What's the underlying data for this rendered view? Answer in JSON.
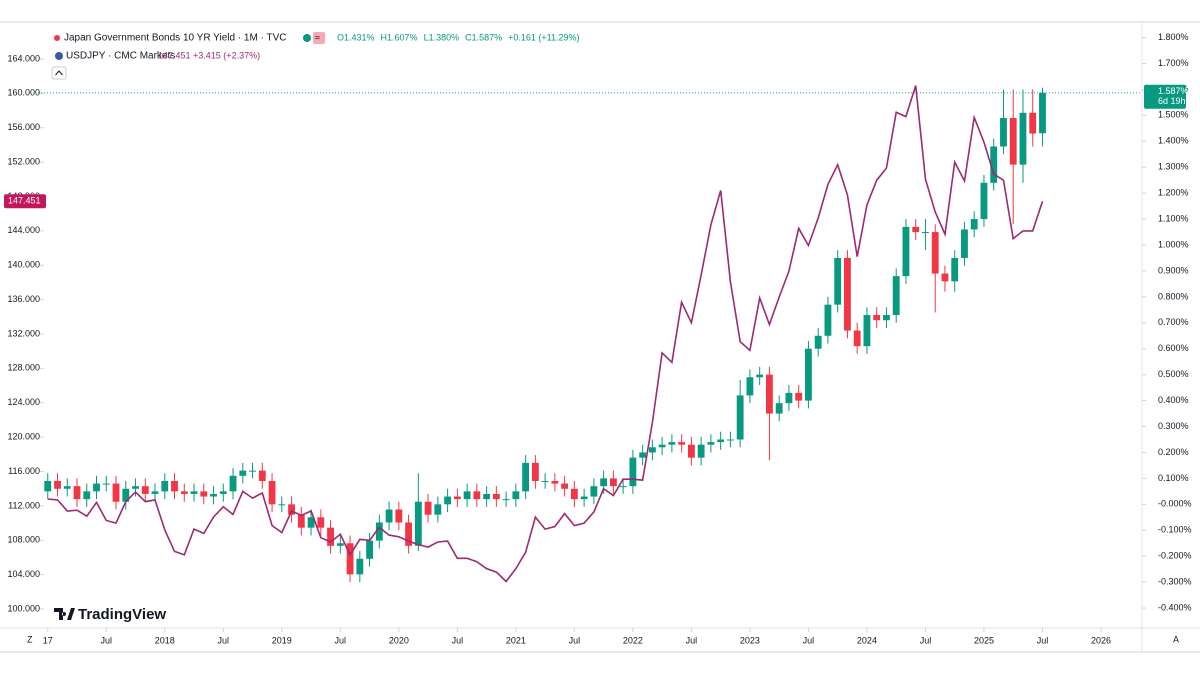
{
  "chart_data": {
    "type": "candlestick",
    "x": [
      "2017-01",
      "2017-02",
      "2017-03",
      "2017-04",
      "2017-05",
      "2017-06",
      "2017-07",
      "2017-08",
      "2017-09",
      "2017-10",
      "2017-11",
      "2017-12",
      "2018-01",
      "2018-02",
      "2018-03",
      "2018-04",
      "2018-05",
      "2018-06",
      "2018-07",
      "2018-08",
      "2018-09",
      "2018-10",
      "2018-11",
      "2018-12",
      "2019-01",
      "2019-02",
      "2019-03",
      "2019-04",
      "2019-05",
      "2019-06",
      "2019-07",
      "2019-08",
      "2019-09",
      "2019-10",
      "2019-11",
      "2019-12",
      "2020-01",
      "2020-02",
      "2020-03",
      "2020-04",
      "2020-05",
      "2020-06",
      "2020-07",
      "2020-08",
      "2020-09",
      "2020-10",
      "2020-11",
      "2020-12",
      "2021-01",
      "2021-02",
      "2021-03",
      "2021-04",
      "2021-05",
      "2021-06",
      "2021-07",
      "2021-08",
      "2021-09",
      "2021-10",
      "2021-11",
      "2021-12",
      "2022-01",
      "2022-02",
      "2022-03",
      "2022-04",
      "2022-05",
      "2022-06",
      "2022-07",
      "2022-08",
      "2022-09",
      "2022-10",
      "2022-11",
      "2022-12",
      "2023-01",
      "2023-02",
      "2023-03",
      "2023-04",
      "2023-05",
      "2023-06",
      "2023-07",
      "2023-08",
      "2023-09",
      "2023-10",
      "2023-11",
      "2023-12",
      "2024-01",
      "2024-02",
      "2024-03",
      "2024-04",
      "2024-05",
      "2024-06",
      "2024-07",
      "2024-08",
      "2024-09",
      "2024-10",
      "2024-11",
      "2024-12",
      "2025-01",
      "2025-02",
      "2025-03",
      "2025-04",
      "2025-05",
      "2025-06",
      "2025-07"
    ],
    "xlim": [
      "2016-12",
      "2026-05"
    ],
    "xticks": [
      {
        "value": "2017-01",
        "label": "17"
      },
      {
        "value": "2017-07",
        "label": "Jul"
      },
      {
        "value": "2018-01",
        "label": "2018"
      },
      {
        "value": "2018-07",
        "label": "Jul"
      },
      {
        "value": "2019-01",
        "label": "2019"
      },
      {
        "value": "2019-07",
        "label": "Jul"
      },
      {
        "value": "2020-01",
        "label": "2020"
      },
      {
        "value": "2020-07",
        "label": "Jul"
      },
      {
        "value": "2021-01",
        "label": "2021"
      },
      {
        "value": "2021-07",
        "label": "Jul"
      },
      {
        "value": "2022-01",
        "label": "2022"
      },
      {
        "value": "2022-07",
        "label": "Jul"
      },
      {
        "value": "2023-01",
        "label": "2023"
      },
      {
        "value": "2023-07",
        "label": "Jul"
      },
      {
        "value": "2024-01",
        "label": "2024"
      },
      {
        "value": "2024-07",
        "label": "Jul"
      },
      {
        "value": "2025-01",
        "label": "2025"
      },
      {
        "value": "2025-07",
        "label": "Jul"
      },
      {
        "value": "2026-01",
        "label": "2026"
      }
    ],
    "ylim": [
      98,
      168
    ],
    "yticks": [
      {
        "value": 100,
        "label": "100.000"
      },
      {
        "value": 104,
        "label": "104.000"
      },
      {
        "value": 108,
        "label": "108.000"
      },
      {
        "value": 112,
        "label": "112.000"
      },
      {
        "value": 116,
        "label": "116.000"
      },
      {
        "value": 120,
        "label": "120.000"
      },
      {
        "value": 124,
        "label": "124.000"
      },
      {
        "value": 128,
        "label": "128.000"
      },
      {
        "value": 132,
        "label": "132.000"
      },
      {
        "value": 136,
        "label": "136.000"
      },
      {
        "value": 140,
        "label": "140.000"
      },
      {
        "value": 144,
        "label": "144.000"
      },
      {
        "value": 148,
        "label": "148.000"
      },
      {
        "value": 152,
        "label": "152.000"
      },
      {
        "value": 156,
        "label": "156.000"
      },
      {
        "value": 160,
        "label": "160.000"
      },
      {
        "value": 164,
        "label": "164.000"
      }
    ],
    "y2lim": [
      -0.47,
      1.85
    ],
    "y2ticks": [
      {
        "value": -0.4,
        "label": "-0.400%"
      },
      {
        "value": -0.3,
        "label": "-0.300%"
      },
      {
        "value": -0.2,
        "label": "-0.200%"
      },
      {
        "value": -0.1,
        "label": "-0.100%"
      },
      {
        "value": 0,
        "label": "-0.000%"
      },
      {
        "value": 0.1,
        "label": "0.100%"
      },
      {
        "value": 0.2,
        "label": "0.200%"
      },
      {
        "value": 0.3,
        "label": "0.300%"
      },
      {
        "value": 0.4,
        "label": "0.400%"
      },
      {
        "value": 0.5,
        "label": "0.500%"
      },
      {
        "value": 0.6,
        "label": "0.600%"
      },
      {
        "value": 0.7,
        "label": "0.700%"
      },
      {
        "value": 0.8,
        "label": "0.800%"
      },
      {
        "value": 0.9,
        "label": "0.900%"
      },
      {
        "value": 1.0,
        "label": "1.000%"
      },
      {
        "value": 1.1,
        "label": "1.100%"
      },
      {
        "value": 1.2,
        "label": "1.200%"
      },
      {
        "value": 1.3,
        "label": "1.300%"
      },
      {
        "value": 1.4,
        "label": "1.400%"
      },
      {
        "value": 1.5,
        "label": "1.500%"
      },
      {
        "value": 1.6,
        "label": "1.600%"
      },
      {
        "value": 1.7,
        "label": "1.700%"
      },
      {
        "value": 1.8,
        "label": "1.800%"
      }
    ],
    "series": [
      {
        "name": "Japan Government Bonds 10 YR Yield · 1M · TVC",
        "type": "candlestick",
        "axis": "y2",
        "up_color": "#089981",
        "down_color": "#f23645",
        "readout": [
          "O1.431%",
          "H1.607%",
          "L1.380%",
          "C1.587%",
          "+0.161 (+11.29%)"
        ],
        "last_label": "1.587%",
        "countdown": "6d 19h",
        "open": [
          0.05,
          0.09,
          0.06,
          0.07,
          0.02,
          0.05,
          0.08,
          0.08,
          0.01,
          0.06,
          0.07,
          0.04,
          0.05,
          0.09,
          0.05,
          0.04,
          0.05,
          0.03,
          0.04,
          0.05,
          0.11,
          0.13,
          0.13,
          0.09,
          0.0,
          0.0,
          -0.04,
          -0.09,
          -0.05,
          -0.09,
          -0.16,
          -0.15,
          -0.27,
          -0.21,
          -0.14,
          -0.07,
          -0.02,
          -0.07,
          -0.16,
          0.01,
          -0.04,
          0.0,
          0.03,
          0.02,
          0.05,
          0.02,
          0.04,
          0.02,
          0.02,
          0.05,
          0.16,
          0.09,
          0.09,
          0.08,
          0.06,
          0.02,
          0.03,
          0.07,
          0.1,
          0.07,
          0.07,
          0.18,
          0.2,
          0.22,
          0.23,
          0.24,
          0.23,
          0.18,
          0.23,
          0.24,
          0.25,
          0.25,
          0.42,
          0.49,
          0.5,
          0.35,
          0.39,
          0.43,
          0.4,
          0.6,
          0.65,
          0.77,
          0.95,
          0.67,
          0.61,
          0.73,
          0.71,
          0.73,
          0.88,
          1.07,
          1.05,
          1.05,
          0.89,
          0.86,
          0.95,
          1.06,
          1.1,
          1.24,
          1.38,
          1.49,
          1.31,
          1.51,
          1.431
        ],
        "high": [
          0.12,
          0.12,
          0.1,
          0.1,
          0.08,
          0.11,
          0.11,
          0.11,
          0.09,
          0.1,
          0.1,
          0.08,
          0.12,
          0.12,
          0.08,
          0.08,
          0.08,
          0.07,
          0.08,
          0.14,
          0.16,
          0.16,
          0.16,
          0.12,
          0.03,
          0.03,
          -0.01,
          -0.02,
          -0.02,
          -0.06,
          -0.12,
          -0.12,
          -0.18,
          -0.11,
          -0.04,
          0.01,
          0.01,
          -0.04,
          0.12,
          0.04,
          0.03,
          0.06,
          0.06,
          0.08,
          0.08,
          0.07,
          0.07,
          0.05,
          0.08,
          0.19,
          0.19,
          0.12,
          0.12,
          0.11,
          0.09,
          0.06,
          0.1,
          0.13,
          0.13,
          0.1,
          0.21,
          0.23,
          0.25,
          0.26,
          0.27,
          0.27,
          0.26,
          0.26,
          0.27,
          0.28,
          0.28,
          0.48,
          0.52,
          0.53,
          0.53,
          0.42,
          0.46,
          0.46,
          0.63,
          0.68,
          0.8,
          0.98,
          0.98,
          0.7,
          0.76,
          0.76,
          0.76,
          0.91,
          1.1,
          1.1,
          1.1,
          1.08,
          0.92,
          0.98,
          1.09,
          1.13,
          1.27,
          1.41,
          1.6,
          1.6,
          1.6,
          1.6,
          1.607
        ],
        "low": [
          0.02,
          0.03,
          0.03,
          -0.01,
          -0.01,
          0.02,
          0.05,
          -0.02,
          -0.02,
          0.03,
          0.01,
          0.01,
          0.02,
          0.02,
          0.01,
          0.01,
          0.0,
          0.0,
          0.01,
          0.02,
          0.08,
          0.1,
          0.06,
          -0.03,
          -0.03,
          -0.07,
          -0.12,
          -0.12,
          -0.12,
          -0.19,
          -0.19,
          -0.3,
          -0.3,
          -0.24,
          -0.17,
          -0.1,
          -0.1,
          -0.19,
          -0.18,
          -0.07,
          -0.07,
          -0.03,
          -0.01,
          -0.01,
          -0.01,
          -0.01,
          -0.01,
          -0.01,
          -0.01,
          0.02,
          0.06,
          0.06,
          0.05,
          0.03,
          -0.01,
          -0.01,
          0.0,
          0.04,
          0.04,
          0.04,
          0.04,
          0.15,
          0.17,
          0.19,
          0.2,
          0.2,
          0.15,
          0.15,
          0.2,
          0.21,
          0.22,
          0.22,
          0.39,
          0.46,
          0.17,
          0.32,
          0.36,
          0.37,
          0.37,
          0.57,
          0.62,
          0.74,
          0.64,
          0.58,
          0.58,
          0.68,
          0.68,
          0.7,
          0.85,
          1.02,
          0.98,
          0.74,
          0.82,
          0.82,
          0.92,
          1.03,
          1.07,
          1.21,
          1.35,
          1.08,
          1.24,
          1.38,
          1.38
        ],
        "close": [
          0.09,
          0.06,
          0.07,
          0.02,
          0.05,
          0.08,
          0.08,
          0.01,
          0.06,
          0.07,
          0.04,
          0.05,
          0.09,
          0.05,
          0.04,
          0.05,
          0.03,
          0.04,
          0.05,
          0.11,
          0.13,
          0.13,
          0.09,
          0.0,
          0.0,
          -0.04,
          -0.09,
          -0.05,
          -0.09,
          -0.16,
          -0.15,
          -0.27,
          -0.21,
          -0.14,
          -0.07,
          -0.02,
          -0.07,
          -0.16,
          0.01,
          -0.04,
          0.0,
          0.03,
          0.02,
          0.05,
          0.02,
          0.04,
          0.02,
          0.02,
          0.05,
          0.16,
          0.09,
          0.09,
          0.08,
          0.06,
          0.02,
          0.03,
          0.07,
          0.1,
          0.07,
          0.07,
          0.18,
          0.2,
          0.22,
          0.23,
          0.24,
          0.23,
          0.18,
          0.23,
          0.24,
          0.25,
          0.25,
          0.42,
          0.49,
          0.5,
          0.35,
          0.39,
          0.43,
          0.4,
          0.6,
          0.65,
          0.77,
          0.95,
          0.67,
          0.61,
          0.73,
          0.71,
          0.73,
          0.88,
          1.07,
          1.05,
          1.05,
          0.89,
          0.86,
          0.95,
          1.06,
          1.1,
          1.24,
          1.38,
          1.49,
          1.31,
          1.51,
          1.43,
          1.587
        ]
      },
      {
        "name": "USDJPY · CMC Markets",
        "type": "line",
        "axis": "y",
        "color": "#9c2a72",
        "readout": [
          "147.451 +3.415 (+2.37%)"
        ],
        "last_label": "147.451",
        "values": [
          112.8,
          112.7,
          111.4,
          111.5,
          110.8,
          112.4,
          110.3,
          110.0,
          112.5,
          113.6,
          112.5,
          112.7,
          109.2,
          106.7,
          106.3,
          109.3,
          108.8,
          110.7,
          111.9,
          111.0,
          113.7,
          112.9,
          113.5,
          109.7,
          108.9,
          111.4,
          110.9,
          111.4,
          108.3,
          107.8,
          108.7,
          106.3,
          108.1,
          108.0,
          109.5,
          108.6,
          108.4,
          107.9,
          107.5,
          107.2,
          107.8,
          107.9,
          105.9,
          105.9,
          105.5,
          104.7,
          104.3,
          103.2,
          104.7,
          106.6,
          110.7,
          109.3,
          109.6,
          111.1,
          109.7,
          110.0,
          111.3,
          114.0,
          113.2,
          115.1,
          115.1,
          115.0,
          121.7,
          129.8,
          128.7,
          135.7,
          133.3,
          138.9,
          144.7,
          148.7,
          138.1,
          131.1,
          130.1,
          136.2,
          133.1,
          136.3,
          139.3,
          144.3,
          142.3,
          145.5,
          149.4,
          151.7,
          148.2,
          141.0,
          147.0,
          149.9,
          151.3,
          157.8,
          157.3,
          160.9,
          150.0,
          146.2,
          143.6,
          152.0,
          149.8,
          157.2,
          154.3,
          150.6,
          149.9,
          143.1,
          144.0,
          144.0,
          147.451
        ]
      }
    ],
    "ui": {
      "logo": "TradingView",
      "scale_left": "Z",
      "scale_right": "A"
    }
  }
}
